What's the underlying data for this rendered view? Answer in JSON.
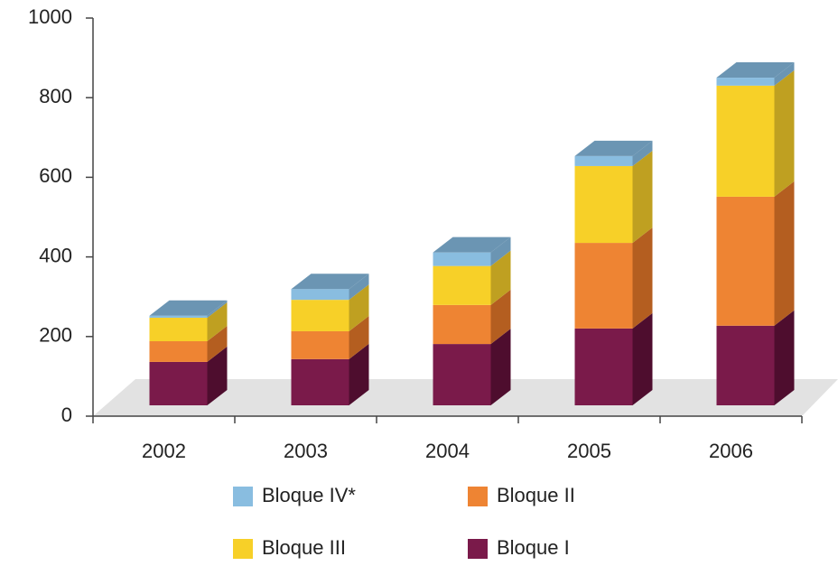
{
  "chart_data": {
    "type": "bar3d_stacked",
    "categories": [
      "2002",
      "2003",
      "2004",
      "2005",
      "2006"
    ],
    "series": [
      {
        "name": "Bloque I",
        "color": "#7a1a4a",
        "side": "#4e0d2e",
        "values": [
          109,
          116,
          154,
          193,
          200
        ]
      },
      {
        "name": "Bloque II",
        "color": "#ee8433",
        "side": "#b45e20",
        "values": [
          52,
          70,
          98,
          215,
          324
        ]
      },
      {
        "name": "Bloque III",
        "color": "#f7d028",
        "side": "#bfa021",
        "values": [
          59,
          79,
          98,
          193,
          279
        ]
      },
      {
        "name": "Bloque IV*",
        "color": "#89bde0",
        "side": "#6b95b3",
        "values": [
          5,
          27,
          34,
          25,
          20
        ]
      }
    ],
    "ylim": [
      0,
      1000
    ],
    "yticks": [
      0,
      200,
      400,
      600,
      800,
      1000
    ]
  }
}
